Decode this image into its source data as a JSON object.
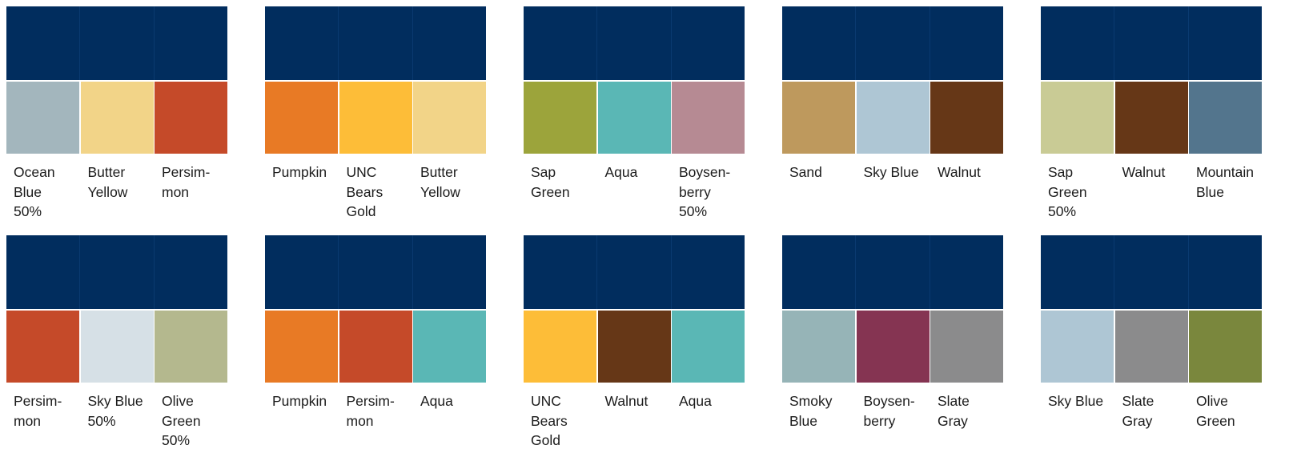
{
  "header_color": "#012d5e",
  "combinations": [
    {
      "swatches": [
        {
          "label": "Ocean\nBlue\n50%",
          "color": "#a3b6bd"
        },
        {
          "label": "Butter\nYellow",
          "color": "#f2d488"
        },
        {
          "label": "Persim-\nmon",
          "color": "#c54a29"
        }
      ]
    },
    {
      "swatches": [
        {
          "label": "Pumpkin",
          "color": "#e87a25"
        },
        {
          "label": "UNC\nBears\nGold",
          "color": "#fdbd38"
        },
        {
          "label": "Butter\nYellow",
          "color": "#f2d488"
        }
      ]
    },
    {
      "swatches": [
        {
          "label": "Sap\nGreen",
          "color": "#9ca43b"
        },
        {
          "label": "Aqua",
          "color": "#5ab7b5"
        },
        {
          "label": "Boysen-\nberry\n50%",
          "color": "#b68a93"
        }
      ]
    },
    {
      "swatches": [
        {
          "label": "Sand",
          "color": "#be995d"
        },
        {
          "label": "Sky Blue",
          "color": "#aec6d4"
        },
        {
          "label": "Walnut",
          "color": "#663717"
        }
      ]
    },
    {
      "swatches": [
        {
          "label": "Sap\nGreen\n50%",
          "color": "#c9cb95"
        },
        {
          "label": "Walnut",
          "color": "#663717"
        },
        {
          "label": "Mountain\nBlue",
          "color": "#53758d"
        }
      ]
    },
    {
      "swatches": [
        {
          "label": "Persim-\nmon",
          "color": "#c54a29"
        },
        {
          "label": "Sky Blue\n50%",
          "color": "#d6e0e6"
        },
        {
          "label": "Olive\nGreen\n50%",
          "color": "#b4b88e"
        }
      ]
    },
    {
      "swatches": [
        {
          "label": "Pumpkin",
          "color": "#e87a25"
        },
        {
          "label": "Persim-\nmon",
          "color": "#c54a29"
        },
        {
          "label": "Aqua",
          "color": "#5ab7b5"
        }
      ]
    },
    {
      "swatches": [
        {
          "label": "UNC\nBears\nGold",
          "color": "#fdbd38"
        },
        {
          "label": "Walnut",
          "color": "#663717"
        },
        {
          "label": "Aqua",
          "color": "#5ab7b5"
        }
      ]
    },
    {
      "swatches": [
        {
          "label": "Smoky\nBlue",
          "color": "#96b4b7"
        },
        {
          "label": "Boysen-\nberry",
          "color": "#853452"
        },
        {
          "label": "Slate\nGray",
          "color": "#8b8b8c"
        }
      ]
    },
    {
      "swatches": [
        {
          "label": "Sky Blue",
          "color": "#aec6d4"
        },
        {
          "label": "Slate\nGray",
          "color": "#8b8b8c"
        },
        {
          "label": "Olive\nGreen",
          "color": "#7a873d"
        }
      ]
    }
  ]
}
